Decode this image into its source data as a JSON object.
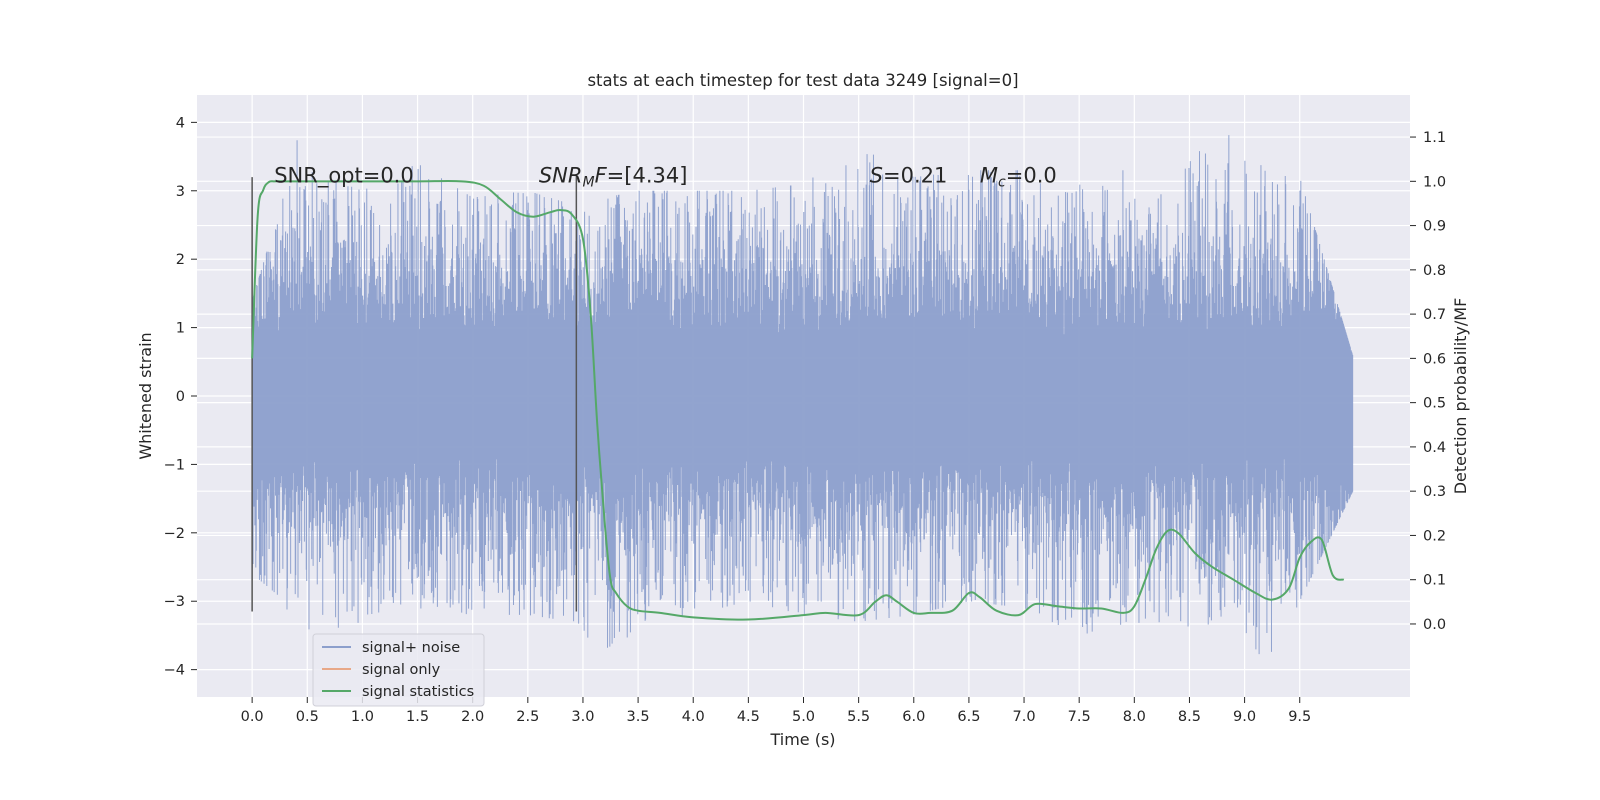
{
  "chart_data": {
    "type": "line",
    "title": "stats at each timestep for test data 3249 [signal=0]",
    "xlabel": "Time (s)",
    "ylabel": "Whitened strain",
    "ylabel_right": "Detection probability/MF",
    "xlim": [
      -0.5,
      10.5
    ],
    "ylim": [
      -4.4,
      4.4
    ],
    "ylim_right": [
      -0.165,
      1.195
    ],
    "x_ticks": [
      0.0,
      0.5,
      1.0,
      1.5,
      2.0,
      2.5,
      3.0,
      3.5,
      4.0,
      4.5,
      5.0,
      5.5,
      6.0,
      6.5,
      7.0,
      7.5,
      8.0,
      8.5,
      9.0,
      9.5
    ],
    "x_tick_labels": [
      "0.0",
      "0.5",
      "1.0",
      "1.5",
      "2.0",
      "2.5",
      "3.0",
      "3.5",
      "4.0",
      "4.5",
      "5.0",
      "5.5",
      "6.0",
      "6.5",
      "7.0",
      "7.5",
      "8.0",
      "8.5",
      "9.0",
      "9.5"
    ],
    "y_ticks": [
      4,
      3,
      2,
      1,
      0,
      -1,
      -2,
      -3,
      -4
    ],
    "y_tick_labels": [
      "4",
      "3",
      "2",
      "1",
      "0",
      "−1",
      "−2",
      "−3",
      "−4"
    ],
    "y_right_ticks": [
      1.1,
      1.0,
      0.9,
      0.8,
      0.7,
      0.6,
      0.5,
      0.4,
      0.3,
      0.2,
      0.1,
      0.0
    ],
    "y_right_tick_labels": [
      "1.1",
      "1.0",
      "0.9",
      "0.8",
      "0.7",
      "0.6",
      "0.5",
      "0.4",
      "0.3",
      "0.2",
      "0.1",
      "0.0"
    ],
    "grid": true,
    "legend_position": "lower-left",
    "series": [
      {
        "name": "signal+ noise",
        "axis": "left",
        "style": "dense-noise",
        "color": "#8c9fcc",
        "x_range": [
          0.0,
          9.98
        ],
        "envelope_x": [
          0.0,
          0.3,
          0.4,
          0.5,
          1.0,
          1.5,
          2.0,
          2.5,
          2.9,
          3.0,
          3.2,
          3.5,
          4.0,
          4.5,
          5.0,
          5.5,
          6.0,
          6.5,
          7.0,
          7.5,
          8.0,
          8.5,
          8.9,
          9.2,
          9.5,
          9.98
        ],
        "envelope_max": [
          1.4,
          3.0,
          4.05,
          3.3,
          3.0,
          3.4,
          2.9,
          3.0,
          2.8,
          2.9,
          2.9,
          3.0,
          3.0,
          3.0,
          3.1,
          3.65,
          3.2,
          3.3,
          3.3,
          3.3,
          3.3,
          3.5,
          3.85,
          3.3,
          3.2,
          0.6
        ],
        "envelope_min": [
          -2.6,
          -3.0,
          -3.75,
          -3.5,
          -3.3,
          -3.1,
          -3.2,
          -3.2,
          -3.3,
          -3.4,
          -4.0,
          -3.3,
          -3.2,
          -3.0,
          -3.2,
          -3.3,
          -3.2,
          -3.0,
          -3.1,
          -3.5,
          -3.3,
          -3.5,
          -3.4,
          -4.0,
          -3.0,
          -1.4
        ]
      },
      {
        "name": "signal only",
        "axis": "left",
        "color": "#dd8452",
        "x": [],
        "y": []
      },
      {
        "name": "signal statistics",
        "axis": "right",
        "color": "#55a868",
        "x": [
          0.0,
          0.05,
          0.1,
          0.15,
          0.2,
          0.3,
          0.5,
          1.0,
          1.5,
          1.9,
          2.1,
          2.25,
          2.4,
          2.55,
          2.7,
          2.8,
          2.9,
          3.0,
          3.07,
          3.13,
          3.2,
          3.25,
          3.3,
          3.4,
          3.5,
          3.7,
          4.0,
          4.5,
          5.0,
          5.2,
          5.5,
          5.65,
          5.75,
          5.85,
          6.0,
          6.15,
          6.35,
          6.5,
          6.6,
          6.75,
          6.95,
          7.1,
          7.3,
          7.5,
          7.7,
          7.9,
          8.0,
          8.1,
          8.2,
          8.3,
          8.4,
          8.55,
          8.7,
          8.9,
          9.1,
          9.25,
          9.4,
          9.5,
          9.6,
          9.7,
          9.8,
          9.9
        ],
        "y": [
          0.6,
          0.92,
          0.98,
          0.998,
          1.0,
          1.0,
          1.0,
          1.0,
          1.0,
          1.0,
          0.99,
          0.96,
          0.93,
          0.92,
          0.93,
          0.935,
          0.925,
          0.87,
          0.7,
          0.45,
          0.22,
          0.1,
          0.07,
          0.04,
          0.03,
          0.025,
          0.015,
          0.01,
          0.02,
          0.025,
          0.02,
          0.05,
          0.065,
          0.05,
          0.025,
          0.025,
          0.03,
          0.07,
          0.06,
          0.03,
          0.02,
          0.045,
          0.04,
          0.035,
          0.035,
          0.025,
          0.04,
          0.1,
          0.17,
          0.21,
          0.205,
          0.16,
          0.13,
          0.1,
          0.07,
          0.055,
          0.08,
          0.15,
          0.185,
          0.19,
          0.11,
          0.1
        ]
      }
    ],
    "vertical_lines": [
      {
        "x": 0.0,
        "y_range": [
          -3.15,
          3.2
        ]
      },
      {
        "x": 2.94,
        "y_range": [
          -3.15,
          3.2
        ]
      }
    ],
    "annotations": [
      {
        "id": "snr_opt",
        "x": 0.2,
        "y_right": 1.0,
        "parts": [
          {
            "t": "SNR_opt=0.0",
            "italic": false
          }
        ]
      },
      {
        "id": "snr_mf",
        "x": 2.6,
        "y_right": 1.0,
        "parts": [
          {
            "t": "SNR",
            "italic": true
          },
          {
            "t": "M",
            "italic": true,
            "sub": true
          },
          {
            "t": "F",
            "italic": true
          },
          {
            "t": "=[4.34]",
            "italic": false
          }
        ]
      },
      {
        "id": "s_stat",
        "x": 5.6,
        "y_right": 1.0,
        "parts": [
          {
            "t": "S",
            "italic": true
          },
          {
            "t": "=0.21",
            "italic": false
          }
        ]
      },
      {
        "id": "mc_stat",
        "x": 6.6,
        "y_right": 1.0,
        "parts": [
          {
            "t": "M",
            "italic": true
          },
          {
            "t": "c",
            "italic": true,
            "sub": true
          },
          {
            "t": "=0.0",
            "italic": false
          }
        ]
      }
    ],
    "legend": [
      {
        "label": "signal+ noise",
        "color": "#8c9fcc"
      },
      {
        "label": "signal only",
        "color": "#e8a888"
      },
      {
        "label": "signal statistics",
        "color": "#55a868"
      }
    ]
  },
  "colors": {
    "axes_bg": "#eaeaf2",
    "grid": "#ffffff",
    "text": "#262626",
    "vline": "#555555"
  }
}
